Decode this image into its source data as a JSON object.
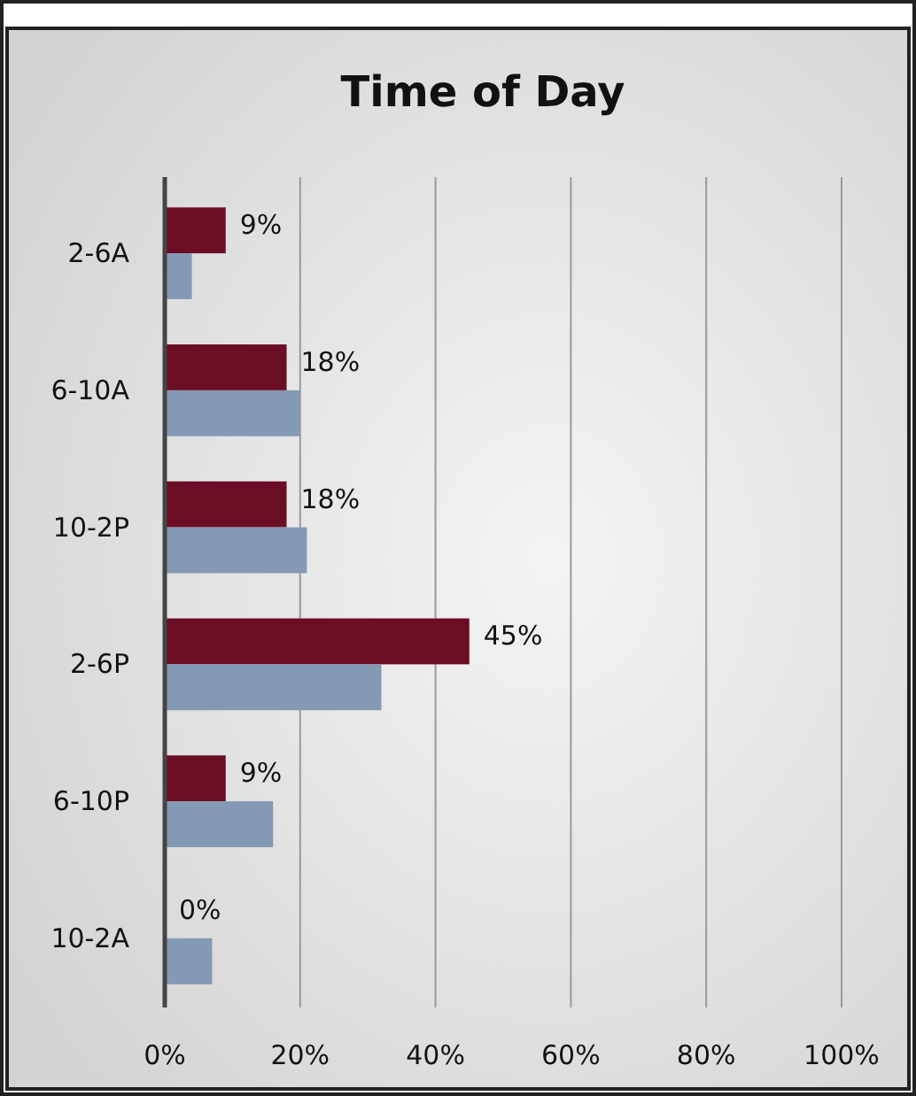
{
  "chart_data": {
    "type": "bar",
    "orientation": "horizontal",
    "title": "Time of Day",
    "categories": [
      "2-6A",
      "6-10A",
      "10-2P",
      "2-6P",
      "6-10P",
      "10-2A"
    ],
    "series": [
      {
        "color": "#6b0d24",
        "values": [
          9,
          18,
          18,
          45,
          9,
          0
        ],
        "value_labels": [
          "9%",
          "18%",
          "18%",
          "45%",
          "9%",
          "0%"
        ]
      },
      {
        "color": "#8499b3",
        "values": [
          4,
          20,
          21,
          32,
          16,
          7
        ]
      }
    ],
    "xlim": [
      0,
      100
    ],
    "xticks": [
      {
        "value": 0,
        "label": "0%"
      },
      {
        "value": 20,
        "label": "20%"
      },
      {
        "value": 40,
        "label": "40%"
      },
      {
        "value": 60,
        "label": "60%"
      },
      {
        "value": 80,
        "label": "80%"
      },
      {
        "value": 100,
        "label": "100%"
      }
    ],
    "grid": "x"
  }
}
